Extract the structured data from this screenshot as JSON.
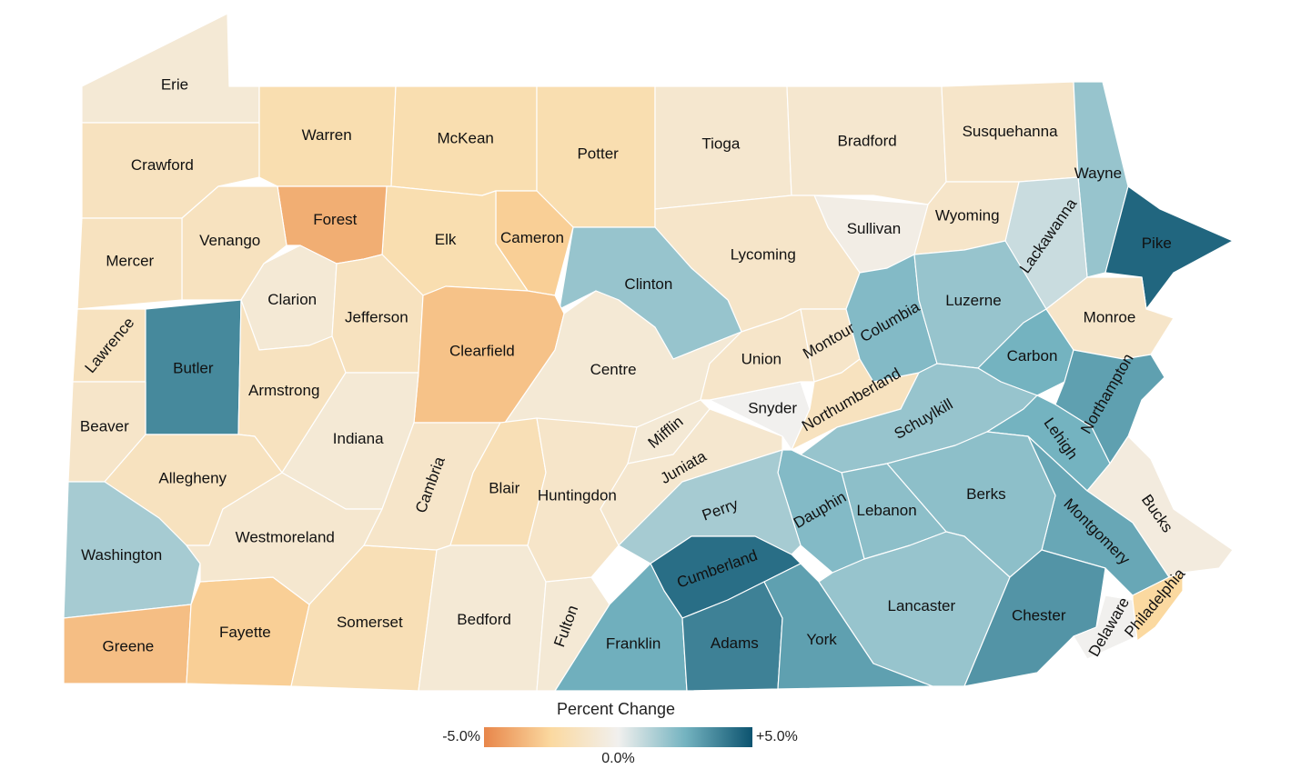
{
  "legend": {
    "title": "Percent Change",
    "range": [
      -5,
      5
    ],
    "ticks": [
      {
        "value": -5,
        "label": "-5.0%"
      },
      {
        "value": 0,
        "label": "0.0%"
      },
      {
        "value": 5,
        "label": "+5.0%"
      }
    ]
  },
  "colorscale": [
    "#e8864a",
    "#fbd9a0",
    "#f1f0ee",
    "#74b3c0",
    "#0c536f"
  ],
  "counties": [
    {
      "name": "Erie",
      "value": -0.8
    },
    {
      "name": "Crawford",
      "value": -1.5
    },
    {
      "name": "Warren",
      "value": -2
    },
    {
      "name": "McKean",
      "value": -2
    },
    {
      "name": "Potter",
      "value": -2
    },
    {
      "name": "Tioga",
      "value": -1
    },
    {
      "name": "Bradford",
      "value": -1
    },
    {
      "name": "Susquehanna",
      "value": -1.2
    },
    {
      "name": "Wayne",
      "value": 1.8
    },
    {
      "name": "Pike",
      "value": 4.5
    },
    {
      "name": "Lackawanna",
      "value": 0.8
    },
    {
      "name": "Wyoming",
      "value": -1.2
    },
    {
      "name": "Sullivan",
      "value": -0.3
    },
    {
      "name": "Lycoming",
      "value": -1.2
    },
    {
      "name": "Clinton",
      "value": 1.8
    },
    {
      "name": "Cameron",
      "value": -2.8
    },
    {
      "name": "Elk",
      "value": -2
    },
    {
      "name": "Forest",
      "value": -3.8
    },
    {
      "name": "Venango",
      "value": -1.5
    },
    {
      "name": "Mercer",
      "value": -1.5
    },
    {
      "name": "Clarion",
      "value": -0.8
    },
    {
      "name": "Jefferson",
      "value": -1.5
    },
    {
      "name": "Clearfield",
      "value": -3.2
    },
    {
      "name": "Centre",
      "value": -0.8
    },
    {
      "name": "Lawrence",
      "value": -1.5
    },
    {
      "name": "Butler",
      "value": 3.6
    },
    {
      "name": "Armstrong",
      "value": -1.5
    },
    {
      "name": "Indiana",
      "value": -0.8
    },
    {
      "name": "Beaver",
      "value": -1.2
    },
    {
      "name": "Allegheny",
      "value": -1.5
    },
    {
      "name": "Washington",
      "value": 1.5
    },
    {
      "name": "Greene",
      "value": -3.3
    },
    {
      "name": "Fayette",
      "value": -2.8
    },
    {
      "name": "Westmoreland",
      "value": -1
    },
    {
      "name": "Somerset",
      "value": -1.8
    },
    {
      "name": "Cambria",
      "value": -1.2
    },
    {
      "name": "Blair",
      "value": -1.8
    },
    {
      "name": "Bedford",
      "value": -0.8
    },
    {
      "name": "Fulton",
      "value": -0.8
    },
    {
      "name": "Huntingdon",
      "value": -1.2
    },
    {
      "name": "Mifflin",
      "value": -0.8
    },
    {
      "name": "Juniata",
      "value": -1
    },
    {
      "name": "Snyder",
      "value": 0
    },
    {
      "name": "Union",
      "value": -1.2
    },
    {
      "name": "Montour",
      "value": -1.2
    },
    {
      "name": "Northumberland",
      "value": -1.5
    },
    {
      "name": "Columbia",
      "value": 2.2
    },
    {
      "name": "Luzerne",
      "value": 1.8
    },
    {
      "name": "Carbon",
      "value": 2.5
    },
    {
      "name": "Monroe",
      "value": -1.2
    },
    {
      "name": "Schuylkill",
      "value": 1.8
    },
    {
      "name": "Northampton",
      "value": 3
    },
    {
      "name": "Lehigh",
      "value": 2.5
    },
    {
      "name": "Bucks",
      "value": -0.5
    },
    {
      "name": "Montgomery",
      "value": 2.8
    },
    {
      "name": "Berks",
      "value": 2
    },
    {
      "name": "Lebanon",
      "value": 2
    },
    {
      "name": "Dauphin",
      "value": 2.2
    },
    {
      "name": "Perry",
      "value": 1.5
    },
    {
      "name": "Cumberland",
      "value": 4.3
    },
    {
      "name": "Lancaster",
      "value": 1.8
    },
    {
      "name": "Chester",
      "value": 3.3
    },
    {
      "name": "Delaware",
      "value": 0
    },
    {
      "name": "Philadelphia",
      "value": -2.5
    },
    {
      "name": "Franklin",
      "value": 2.6
    },
    {
      "name": "Adams",
      "value": 3.8
    },
    {
      "name": "York",
      "value": 3
    }
  ]
}
